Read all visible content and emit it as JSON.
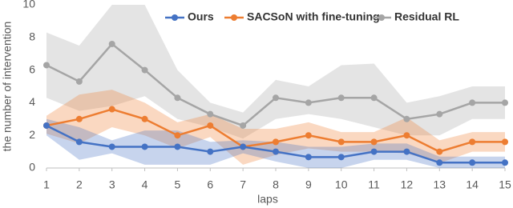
{
  "chart_data": {
    "type": "line",
    "x_label": "laps",
    "y_label": "the number of intervention",
    "x": [
      1,
      2,
      3,
      4,
      5,
      6,
      7,
      8,
      9,
      10,
      11,
      12,
      13,
      14,
      15
    ],
    "xlim": [
      1,
      15
    ],
    "xticks": [
      1,
      2,
      3,
      4,
      5,
      6,
      7,
      8,
      9,
      10,
      11,
      12,
      13,
      14,
      15
    ],
    "ylim": [
      0,
      10
    ],
    "yticks": [
      0,
      2,
      4,
      6,
      8,
      10
    ],
    "series": [
      {
        "name": "Ours",
        "color": "#4472c4",
        "values": [
          2.6,
          1.6,
          1.3,
          1.3,
          1.3,
          1.0,
          1.3,
          1.0,
          0.67,
          0.67,
          1.0,
          1.0,
          0.33,
          0.33,
          0.33
        ],
        "lower": [
          2.0,
          0.5,
          0.9,
          0.2,
          0.2,
          0.2,
          0.9,
          0.4,
          0,
          0,
          0.5,
          0.5,
          0,
          0,
          0
        ],
        "upper": [
          3.0,
          2.5,
          1.7,
          2.3,
          2.3,
          1.6,
          1.7,
          1.6,
          1.3,
          1.3,
          1.5,
          1.5,
          0.7,
          0.7,
          0.7
        ]
      },
      {
        "name": "SACSoN with fine-tuning",
        "color": "#ed7d31",
        "values": [
          2.6,
          3.0,
          3.6,
          3.0,
          2.0,
          2.6,
          1.3,
          1.6,
          2.0,
          1.6,
          1.6,
          2.0,
          1.0,
          1.6,
          1.6
        ],
        "lower": [
          2.1,
          1.5,
          2.5,
          2.0,
          1.2,
          1.9,
          0.2,
          0.8,
          1.2,
          1.0,
          1.0,
          0.9,
          0.3,
          1.0,
          1.0
        ],
        "upper": [
          3.2,
          4.5,
          4.8,
          4.0,
          2.8,
          3.3,
          2.4,
          2.4,
          2.8,
          2.2,
          2.2,
          3.1,
          1.7,
          2.2,
          2.2
        ]
      },
      {
        "name": "Residual RL",
        "color": "#a5a5a5",
        "values": [
          6.3,
          5.3,
          7.6,
          6.0,
          4.3,
          3.3,
          2.6,
          4.3,
          4.0,
          4.3,
          4.3,
          3.0,
          3.3,
          4.0,
          4.0
        ],
        "lower": [
          4.3,
          3.5,
          3.8,
          4.4,
          3.0,
          2.5,
          1.8,
          3.0,
          3.3,
          3.0,
          2.5,
          2.0,
          2.0,
          3.0,
          3.0
        ],
        "upper": [
          8.3,
          7.5,
          10,
          10,
          6.0,
          4.0,
          3.4,
          5.4,
          5.0,
          6.3,
          6.4,
          4.0,
          4.4,
          5.0,
          5.0
        ]
      }
    ]
  }
}
